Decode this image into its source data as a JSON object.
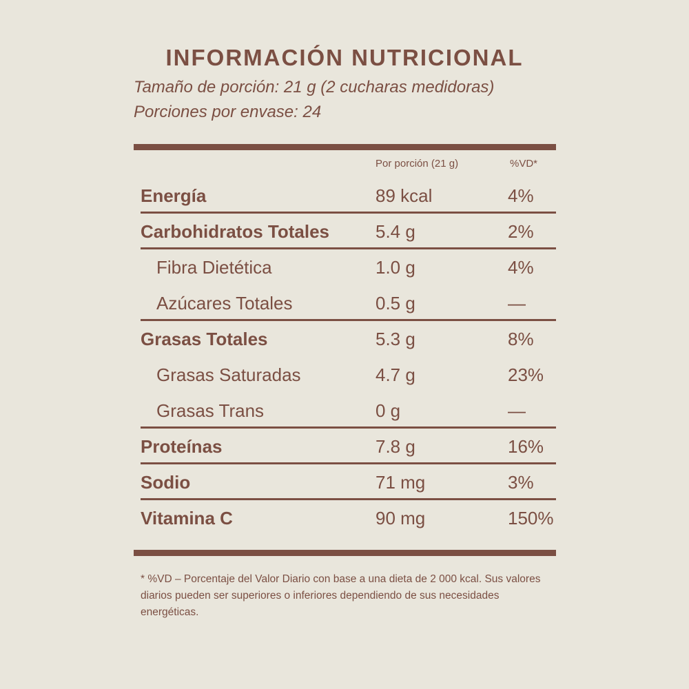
{
  "title": "INFORMACIÓN NUTRICIONAL",
  "serving_size": "Tamaño de porción: 21 g (2 cucharas medidoras)",
  "servings_per_container": "Porciones por envase: 24",
  "columns": {
    "per_serving": "Por porción (21 g)",
    "daily_value": "%VD*"
  },
  "rows": [
    {
      "name": "Energía",
      "amount": "89 kcal",
      "dv": "4%"
    },
    {
      "name": "Carbohidratos Totales",
      "amount": "5.4 g",
      "dv": "2%"
    },
    {
      "name": "Fibra Dietética",
      "amount": "1.0 g",
      "dv": "4%"
    },
    {
      "name": "Azúcares Totales",
      "amount": "0.5 g",
      "dv": "—"
    },
    {
      "name": "Grasas Totales",
      "amount": "5.3 g",
      "dv": "8%"
    },
    {
      "name": "Grasas Saturadas",
      "amount": "4.7 g",
      "dv": "23%"
    },
    {
      "name": "Grasas Trans",
      "amount": "0 g",
      "dv": "—"
    },
    {
      "name": "Proteínas",
      "amount": "7.8 g",
      "dv": "16%"
    },
    {
      "name": "Sodio",
      "amount": "71 mg",
      "dv": "3%"
    },
    {
      "name": "Vitamina C",
      "amount": "90 mg",
      "dv": "150%"
    }
  ],
  "footnote": "* %VD – Porcentaje del Valor Diario con base a una dieta de 2 000 kcal. Sus valores diarios pueden ser superiores o inferiores dependiendo de sus necesidades energéticas.",
  "colors": {
    "background": "#e9e6dc",
    "text": "#7b4f43"
  }
}
